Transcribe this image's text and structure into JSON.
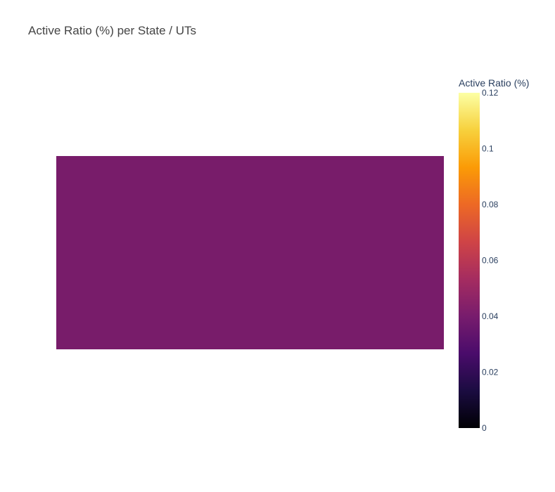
{
  "chart_data": {
    "type": "heatmap",
    "title": "Active Ratio (%) per State / UTs",
    "xlabel": "",
    "ylabel": "",
    "colorbar": {
      "title": "Active Ratio (%)",
      "range": [
        0,
        0.12
      ],
      "ticks": [
        0,
        0.02,
        0.04,
        0.06,
        0.08,
        0.1,
        0.12
      ],
      "tick_labels": [
        "0",
        "0.02",
        "0.04",
        "0.06",
        "0.08",
        "0.1",
        "0.12"
      ],
      "colorscale": [
        "#000004",
        "#1b0c41",
        "#4a0c6b",
        "#781c6d",
        "#a52c60",
        "#cf4446",
        "#ed6925",
        "#fb9b06",
        "#f7d13d",
        "#fcffa4"
      ]
    },
    "cells": [
      {
        "value": 0.046,
        "color": "#781c6a"
      }
    ],
    "legend": false,
    "grid": false
  }
}
